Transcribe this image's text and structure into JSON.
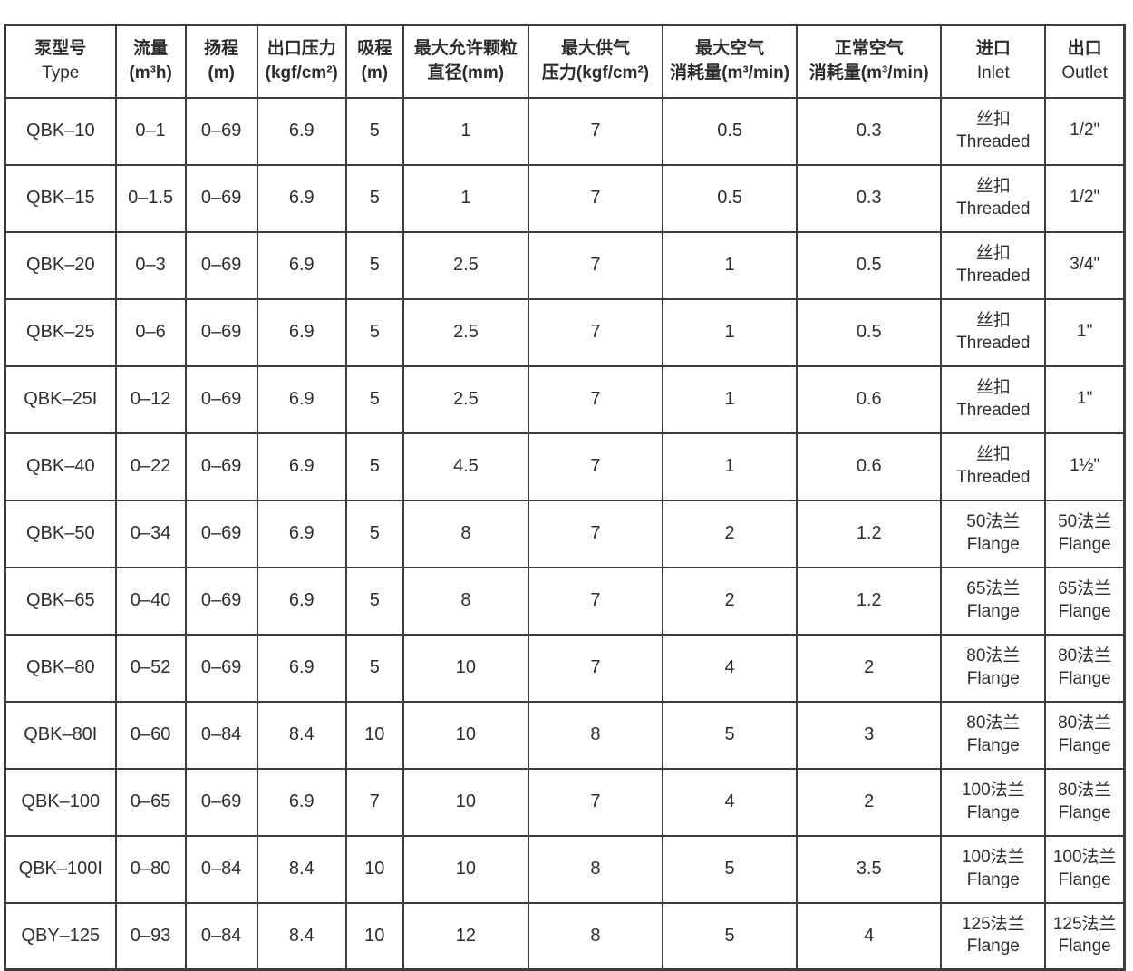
{
  "page": {
    "background": "#ffffff",
    "border_color": "#3c3c3c",
    "text_color": "#2e2e2e"
  },
  "table": {
    "columns": [
      {
        "key": "type",
        "line1": "泵型号",
        "line2": "Type"
      },
      {
        "key": "flow",
        "line1": "流量",
        "line2": "(m³h)"
      },
      {
        "key": "head",
        "line1": "扬程",
        "line2": "(m)"
      },
      {
        "key": "outlet-pressure",
        "line1": "出口压力",
        "line2": "(kgf/cm²)"
      },
      {
        "key": "suction",
        "line1": "吸程",
        "line2": "(m)"
      },
      {
        "key": "particle",
        "line1": "最大允许颗粒",
        "line2": "直径(mm)"
      },
      {
        "key": "supply-pressure",
        "line1": "最大供气",
        "line2": "压力(kgf/cm²)"
      },
      {
        "key": "max-air",
        "line1": "最大空气",
        "line2": "消耗量(m³/min)"
      },
      {
        "key": "normal-air",
        "line1": "正常空气",
        "line2": "消耗量(m³/min)"
      },
      {
        "key": "inlet",
        "line1": "进口",
        "line2": "Inlet"
      },
      {
        "key": "outlet",
        "line1": "出口",
        "line2": "Outlet"
      }
    ],
    "rows": [
      {
        "cells": [
          "QBK–10",
          "0–1",
          "0–69",
          "6.9",
          "5",
          "1",
          "7",
          "0.5",
          "0.3"
        ],
        "inlet": [
          "丝扣",
          "Threaded"
        ],
        "outlet": [
          "1/2\""
        ]
      },
      {
        "cells": [
          "QBK–15",
          "0–1.5",
          "0–69",
          "6.9",
          "5",
          "1",
          "7",
          "0.5",
          "0.3"
        ],
        "inlet": [
          "丝扣",
          "Threaded"
        ],
        "outlet": [
          "1/2\""
        ]
      },
      {
        "cells": [
          "QBK–20",
          "0–3",
          "0–69",
          "6.9",
          "5",
          "2.5",
          "7",
          "1",
          "0.5"
        ],
        "inlet": [
          "丝扣",
          "Threaded"
        ],
        "outlet": [
          "3/4\""
        ]
      },
      {
        "cells": [
          "QBK–25",
          "0–6",
          "0–69",
          "6.9",
          "5",
          "2.5",
          "7",
          "1",
          "0.5"
        ],
        "inlet": [
          "丝扣",
          "Threaded"
        ],
        "outlet": [
          "1\""
        ]
      },
      {
        "cells": [
          "QBK–25I",
          "0–12",
          "0–69",
          "6.9",
          "5",
          "2.5",
          "7",
          "1",
          "0.6"
        ],
        "inlet": [
          "丝扣",
          "Threaded"
        ],
        "outlet": [
          "1\""
        ]
      },
      {
        "cells": [
          "QBK–40",
          "0–22",
          "0–69",
          "6.9",
          "5",
          "4.5",
          "7",
          "1",
          "0.6"
        ],
        "inlet": [
          "丝扣",
          "Threaded"
        ],
        "outlet": [
          "1½\""
        ]
      },
      {
        "cells": [
          "QBK–50",
          "0–34",
          "0–69",
          "6.9",
          "5",
          "8",
          "7",
          "2",
          "1.2"
        ],
        "inlet": [
          "50法兰",
          "Flange"
        ],
        "outlet": [
          "50法兰",
          "Flange"
        ]
      },
      {
        "cells": [
          "QBK–65",
          "0–40",
          "0–69",
          "6.9",
          "5",
          "8",
          "7",
          "2",
          "1.2"
        ],
        "inlet": [
          "65法兰",
          "Flange"
        ],
        "outlet": [
          "65法兰",
          "Flange"
        ]
      },
      {
        "cells": [
          "QBK–80",
          "0–52",
          "0–69",
          "6.9",
          "5",
          "10",
          "7",
          "4",
          "2"
        ],
        "inlet": [
          "80法兰",
          "Flange"
        ],
        "outlet": [
          "80法兰",
          "Flange"
        ]
      },
      {
        "cells": [
          "QBK–80I",
          "0–60",
          "0–84",
          "8.4",
          "10",
          "10",
          "8",
          "5",
          "3"
        ],
        "inlet": [
          "80法兰",
          "Flange"
        ],
        "outlet": [
          "80法兰",
          "Flange"
        ]
      },
      {
        "cells": [
          "QBK–100",
          "0–65",
          "0–69",
          "6.9",
          "7",
          "10",
          "7",
          "4",
          "2"
        ],
        "inlet": [
          "100法兰",
          "Flange"
        ],
        "outlet": [
          "80法兰",
          "Flange"
        ]
      },
      {
        "cells": [
          "QBK–100I",
          "0–80",
          "0–84",
          "8.4",
          "10",
          "10",
          "8",
          "5",
          "3.5"
        ],
        "inlet": [
          "100法兰",
          "Flange"
        ],
        "outlet": [
          "100法兰",
          "Flange"
        ]
      },
      {
        "cells": [
          "QBY–125",
          "0–93",
          "0–84",
          "8.4",
          "10",
          "12",
          "8",
          "5",
          "4"
        ],
        "inlet": [
          "125法兰",
          "Flange"
        ],
        "outlet": [
          "125法兰",
          "Flange"
        ]
      }
    ]
  }
}
